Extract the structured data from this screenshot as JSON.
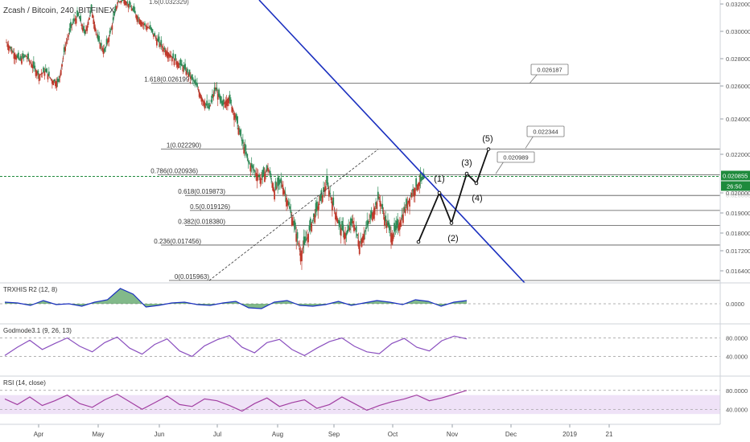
{
  "header": {
    "symbol": "Zcash / Bitcoin, 240, BITFINEX"
  },
  "chart_data": {
    "type": "line",
    "title": "Zcash / Bitcoin, 240, BITFINEX",
    "x_labels": [
      "Apr",
      "May",
      "Jun",
      "Jul",
      "Aug",
      "Sep",
      "Oct",
      "Nov",
      "Dec",
      "2019",
      "21"
    ],
    "y_ticks": [
      "0.032000",
      "0.030000",
      "0.028000",
      "0.026000",
      "0.024000",
      "0.022000",
      "0.020000",
      "0.019000",
      "0.018000",
      "0.017200",
      "0.016400"
    ],
    "y_tick_values": [
      0.032,
      0.03,
      0.028,
      0.026,
      0.024,
      0.022,
      0.02,
      0.019,
      0.018,
      0.0172,
      0.0164
    ],
    "ylim": [
      0.01595,
      0.0325
    ],
    "fib_levels": [
      {
        "label": "1.618(0.026199)",
        "value": 0.026199
      },
      {
        "label": "1(0.022290)",
        "value": 0.02229
      },
      {
        "label": "0.786(0.020936)",
        "value": 0.020936
      },
      {
        "label": "0.618(0.019873)",
        "value": 0.019873
      },
      {
        "label": "0.5(0.019126)",
        "value": 0.019126
      },
      {
        "label": "0.382(0.018380)",
        "value": 0.01838
      },
      {
        "label": "0.236(0.017456)",
        "value": 0.017456
      },
      {
        "label": "0(0.015963)",
        "value": 0.015963
      }
    ],
    "fib_top_partial": "1.6(0.032329)",
    "current_price": {
      "value": 0.020855,
      "label": "0.020855",
      "countdown": "26:50",
      "hidden_tick": "0.020000"
    },
    "callouts": [
      {
        "label": "0.026187",
        "value": 0.026187
      },
      {
        "label": "0.022344",
        "value": 0.022344
      },
      {
        "label": "0.020989",
        "value": 0.020989
      }
    ],
    "wave_labels": [
      "(1)",
      "(2)",
      "(3)",
      "(4)",
      "(5)"
    ],
    "series": [
      {
        "name": "price",
        "values": [
          0.0292,
          0.0285,
          0.0279,
          0.0282,
          0.0275,
          0.0268,
          0.0271,
          0.0264,
          0.0263,
          0.0289,
          0.0305,
          0.0312,
          0.0298,
          0.0316,
          0.0294,
          0.0285,
          0.0301,
          0.0322,
          0.0325,
          0.0318,
          0.0311,
          0.0305,
          0.0302,
          0.0294,
          0.0288,
          0.0283,
          0.0278,
          0.0274,
          0.0268,
          0.0261,
          0.0252,
          0.0246,
          0.0259,
          0.0248,
          0.0253,
          0.0242,
          0.0228,
          0.0216,
          0.0211,
          0.0207,
          0.0213,
          0.0201,
          0.0206,
          0.0196,
          0.0184,
          0.0171,
          0.0178,
          0.0188,
          0.0196,
          0.0205,
          0.0194,
          0.0183,
          0.0179,
          0.0186,
          0.0175,
          0.0182,
          0.019,
          0.0198,
          0.0186,
          0.0179,
          0.0184,
          0.0192,
          0.02,
          0.0205,
          0.0208
        ]
      }
    ],
    "panels": [
      {
        "title": "TRXHIS R2 (12, 8)",
        "ticks": [
          "0.0000"
        ],
        "tick_values": [
          0
        ],
        "range": [
          -1,
          1
        ],
        "values": [
          0.1,
          0.05,
          -0.1,
          0.2,
          -0.05,
          0.0,
          -0.15,
          0.1,
          0.25,
          0.95,
          0.6,
          -0.2,
          -0.1,
          0.05,
          0.1,
          -0.05,
          -0.1,
          0.05,
          0.15,
          -0.25,
          -0.3,
          0.1,
          0.2,
          -0.1,
          -0.15,
          -0.05,
          0.15,
          -0.1,
          0.05,
          0.2,
          0.1,
          -0.05,
          0.25,
          0.15,
          -0.15,
          0.1,
          0.2
        ]
      },
      {
        "title": "Godmode3.1 (9, 26, 13)",
        "ticks": [
          "80.0000",
          "40.0000"
        ],
        "tick_values": [
          80,
          40
        ],
        "range": [
          15,
          100
        ],
        "values": [
          42,
          60,
          75,
          55,
          68,
          80,
          62,
          50,
          70,
          82,
          58,
          45,
          66,
          78,
          52,
          40,
          63,
          76,
          85,
          60,
          48,
          70,
          77,
          55,
          42,
          58,
          72,
          80,
          62,
          50,
          46,
          68,
          79,
          60,
          52,
          74,
          84,
          78
        ]
      },
      {
        "title": "RSI (14, close)",
        "ticks": [
          "80.0000",
          "40.0000"
        ],
        "tick_values": [
          80,
          40
        ],
        "range": [
          15,
          100
        ],
        "values": [
          62,
          50,
          66,
          48,
          58,
          70,
          52,
          44,
          60,
          72,
          56,
          40,
          54,
          68,
          50,
          46,
          62,
          58,
          48,
          36,
          52,
          64,
          46,
          54,
          60,
          42,
          50,
          66,
          52,
          38,
          48,
          56,
          62,
          70,
          58,
          64,
          72,
          80
        ]
      }
    ]
  }
}
